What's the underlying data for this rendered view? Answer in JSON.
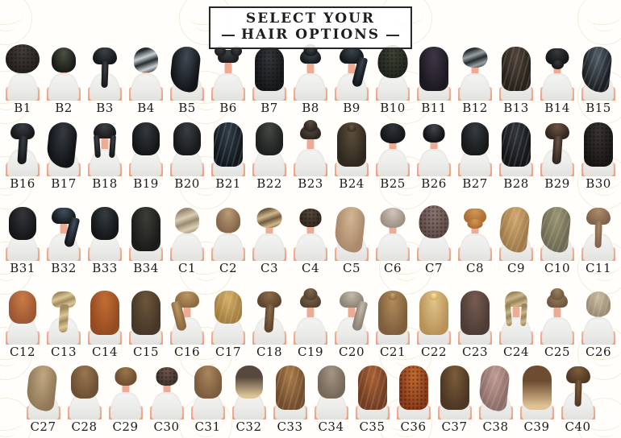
{
  "title": {
    "line1": "SELECT YOUR",
    "line2": "HAIR OPTIONS"
  },
  "colors": {
    "skin": "#f2b29e",
    "shirt": "#ececea",
    "label_text": "#1b1b1b",
    "title_border": "#262626",
    "watermark": "#d2c08e",
    "background": "#fffefb"
  },
  "rows": [
    {
      "name": "row-1",
      "items": [
        {
          "label": "B1",
          "v": "afro",
          "c": "#26211f",
          "s": "#453e3a",
          "tex": "curl"
        },
        {
          "label": "B2",
          "v": "bob",
          "c": "#191b18",
          "s": "#4a5142"
        },
        {
          "label": "B3",
          "v": "braid",
          "c": "#16181a",
          "s": "#3c4247"
        },
        {
          "label": "B4",
          "v": "bob",
          "c": "#262b2e",
          "s": "#c9d0d3",
          "g": "streak"
        },
        {
          "label": "B5",
          "v": "longside",
          "c": "#121518",
          "s": "#3f4a55",
          "side": "r"
        },
        {
          "label": "B6",
          "v": "buns2",
          "c": "#1b1d1f",
          "s": "#3e4246"
        },
        {
          "label": "B7",
          "v": "long",
          "c": "#17191b",
          "s": "#34383c",
          "tex": "curl"
        },
        {
          "label": "B8",
          "v": "buntop",
          "c": "#171a1e",
          "s": "#434e57"
        },
        {
          "label": "B9",
          "v": "ponyside",
          "c": "#15181b",
          "s": "#3b444e",
          "side": "r"
        },
        {
          "label": "B10",
          "v": "curly",
          "c": "#23261f",
          "s": "#3f4435",
          "tex": "curl"
        },
        {
          "label": "B11",
          "v": "long",
          "c": "#1c1920",
          "s": "#3f3648"
        },
        {
          "label": "B12",
          "v": "short",
          "c": "#272b2d",
          "s": "#97a1a3",
          "g": "streak"
        },
        {
          "label": "B13",
          "v": "long",
          "c": "#272119",
          "s": "#51443a",
          "tex": "wave"
        },
        {
          "label": "B14",
          "v": "bunlow",
          "c": "#151618",
          "s": "#37393c"
        },
        {
          "label": "B15",
          "v": "longside",
          "c": "#1a1d20",
          "s": "#505f6b",
          "side": "r",
          "tex": "wave"
        }
      ]
    },
    {
      "name": "row-2",
      "items": [
        {
          "label": "B16",
          "v": "ponylow",
          "c": "#16181b",
          "s": "#393e44"
        },
        {
          "label": "B17",
          "v": "longside",
          "c": "#111316",
          "s": "#363b41",
          "side": "r"
        },
        {
          "label": "B18",
          "v": "braids2",
          "c": "#18191b",
          "s": "#3d4145"
        },
        {
          "label": "B19",
          "v": "lob",
          "c": "#141618",
          "s": "#35393d"
        },
        {
          "label": "B20",
          "v": "lob",
          "c": "#17191b",
          "s": "#3a3f43"
        },
        {
          "label": "B21",
          "v": "long",
          "c": "#11171c",
          "s": "#2f3e4a",
          "tex": "wave"
        },
        {
          "label": "B22",
          "v": "lob",
          "c": "#1e211f",
          "s": "#424843"
        },
        {
          "label": "B23",
          "v": "buntop",
          "c": "#2d2621",
          "s": "#5a4d41"
        },
        {
          "label": "B24",
          "v": "halfup",
          "c": "#30281f",
          "s": "#5d4e3c"
        },
        {
          "label": "B25",
          "v": "short",
          "c": "#141517",
          "s": "#313539"
        },
        {
          "label": "B26",
          "v": "crop",
          "c": "#101214",
          "s": "#40474c"
        },
        {
          "label": "B27",
          "v": "lob",
          "c": "#161819",
          "s": "#383c40"
        },
        {
          "label": "B28",
          "v": "long",
          "c": "#131517",
          "s": "#32373c",
          "tex": "wave"
        },
        {
          "label": "B29",
          "v": "ponylow",
          "c": "#342720",
          "s": "#6e5546"
        },
        {
          "label": "B30",
          "v": "long",
          "c": "#1b1818",
          "s": "#3b3434",
          "tex": "curl"
        }
      ]
    },
    {
      "name": "row-3",
      "items": [
        {
          "label": "B31",
          "v": "lob",
          "c": "#151618",
          "s": "#343639"
        },
        {
          "label": "B32",
          "v": "ponyside",
          "c": "#15191e",
          "s": "#41505c",
          "side": "r"
        },
        {
          "label": "B33",
          "v": "lob",
          "c": "#131517",
          "s": "#373c40"
        },
        {
          "label": "B34",
          "v": "long",
          "c": "#1b1b19",
          "s": "#3d3d38"
        },
        {
          "label": "C1",
          "v": "bob",
          "c": "#9a8c74",
          "s": "#d9cdb2",
          "g": "streak"
        },
        {
          "label": "C2",
          "v": "bob",
          "c": "#85684c",
          "s": "#bb9c76"
        },
        {
          "label": "C3",
          "v": "short",
          "c": "#715c43",
          "s": "#cdb68a",
          "g": "streak"
        },
        {
          "label": "C4",
          "v": "crop",
          "c": "#372b21",
          "s": "#57483c",
          "tex": "curl"
        },
        {
          "label": "C5",
          "v": "longside",
          "c": "#aa896c",
          "s": "#d3b693",
          "side": "r"
        },
        {
          "label": "C6",
          "v": "short",
          "c": "#9c8f84",
          "s": "#d1c6bc"
        },
        {
          "label": "C7",
          "v": "curly",
          "c": "#604d48",
          "s": "#8c7572",
          "tex": "curl"
        },
        {
          "label": "C8",
          "v": "updo",
          "c": "#a86c35",
          "s": "#d39751"
        },
        {
          "label": "C9",
          "v": "longside",
          "c": "#9e7949",
          "s": "#d1a96d",
          "side": "r",
          "tex": "wave"
        },
        {
          "label": "C10",
          "v": "longside",
          "c": "#6d6952",
          "s": "#9a9571",
          "side": "r",
          "tex": "wave"
        },
        {
          "label": "C11",
          "v": "braid",
          "c": "#7f634c",
          "s": "#ab8c68"
        }
      ]
    },
    {
      "name": "row-4",
      "items": [
        {
          "label": "C12",
          "v": "lob",
          "c": "#9e5732",
          "s": "#ca7c47"
        },
        {
          "label": "C13",
          "v": "ponylow",
          "c": "#a28c5e",
          "s": "#dbc696",
          "g": "streak"
        },
        {
          "label": "C14",
          "v": "long",
          "c": "#954b21",
          "s": "#c26e34"
        },
        {
          "label": "C15",
          "v": "long",
          "c": "#473729",
          "s": "#6d5639"
        },
        {
          "label": "C16",
          "v": "ponyside",
          "c": "#8c6a42",
          "s": "#bd9762",
          "side": "l"
        },
        {
          "label": "C17",
          "v": "lob",
          "c": "#a27e40",
          "s": "#d6b068",
          "tex": "wave"
        },
        {
          "label": "C18",
          "v": "ponylow",
          "c": "#5e4530",
          "s": "#8c6c49"
        },
        {
          "label": "C19",
          "v": "buntop",
          "c": "#544331",
          "s": "#7f674c"
        },
        {
          "label": "C20",
          "v": "ponyside",
          "c": "#8d8477",
          "s": "#c4bbab",
          "side": "r"
        },
        {
          "label": "C21",
          "v": "halfup",
          "c": "#7e5e3d",
          "s": "#b28c5a"
        },
        {
          "label": "C22",
          "v": "halfup",
          "c": "#b89359",
          "s": "#e2c489"
        },
        {
          "label": "C23",
          "v": "long",
          "c": "#4e3c36",
          "s": "#775c52"
        },
        {
          "label": "C24",
          "v": "braids2",
          "c": "#99845c",
          "s": "#cbb788",
          "g": "streak"
        },
        {
          "label": "C25",
          "v": "buntop",
          "c": "#6f5840",
          "s": "#9c805e"
        },
        {
          "label": "C26",
          "v": "bob",
          "c": "#9a8c74",
          "s": "#cbbda2",
          "tex": "wave"
        }
      ]
    },
    {
      "name": "row-5",
      "items": [
        {
          "label": "C27",
          "v": "longside",
          "c": "#917858",
          "s": "#c2a880",
          "side": "r"
        },
        {
          "label": "C28",
          "v": "lob",
          "c": "#6d5035",
          "s": "#98764e"
        },
        {
          "label": "C29",
          "v": "crop",
          "c": "#704e2e",
          "s": "#98764c"
        },
        {
          "label": "C30",
          "v": "crop",
          "c": "#42332d",
          "s": "#6f5850",
          "tex": "curl"
        },
        {
          "label": "C31",
          "v": "lob",
          "c": "#7c5c3e",
          "s": "#aa865c"
        },
        {
          "label": "C32",
          "v": "lob",
          "c": "#57483e",
          "s": "#dbc496",
          "g": "ombre"
        },
        {
          "label": "C33",
          "v": "long",
          "c": "#704b2c",
          "s": "#aa7c49",
          "tex": "wave"
        },
        {
          "label": "C34",
          "v": "lob",
          "c": "#766959",
          "s": "#a49584"
        },
        {
          "label": "C35",
          "v": "long",
          "c": "#713c21",
          "s": "#a76134",
          "tex": "wave"
        },
        {
          "label": "C36",
          "v": "long",
          "c": "#8c3c1b",
          "s": "#c46c31",
          "tex": "curl"
        },
        {
          "label": "C37",
          "v": "long",
          "c": "#4c3723",
          "s": "#7c5c39"
        },
        {
          "label": "C38",
          "v": "longside",
          "c": "#8c6c66",
          "s": "#bf9c94",
          "side": "r",
          "tex": "wave"
        },
        {
          "label": "C39",
          "v": "long",
          "c": "#6d4c31",
          "s": "#dfc395",
          "g": "ombre"
        },
        {
          "label": "C40",
          "v": "braid",
          "c": "#523925",
          "s": "#7f5e3b"
        }
      ]
    }
  ]
}
